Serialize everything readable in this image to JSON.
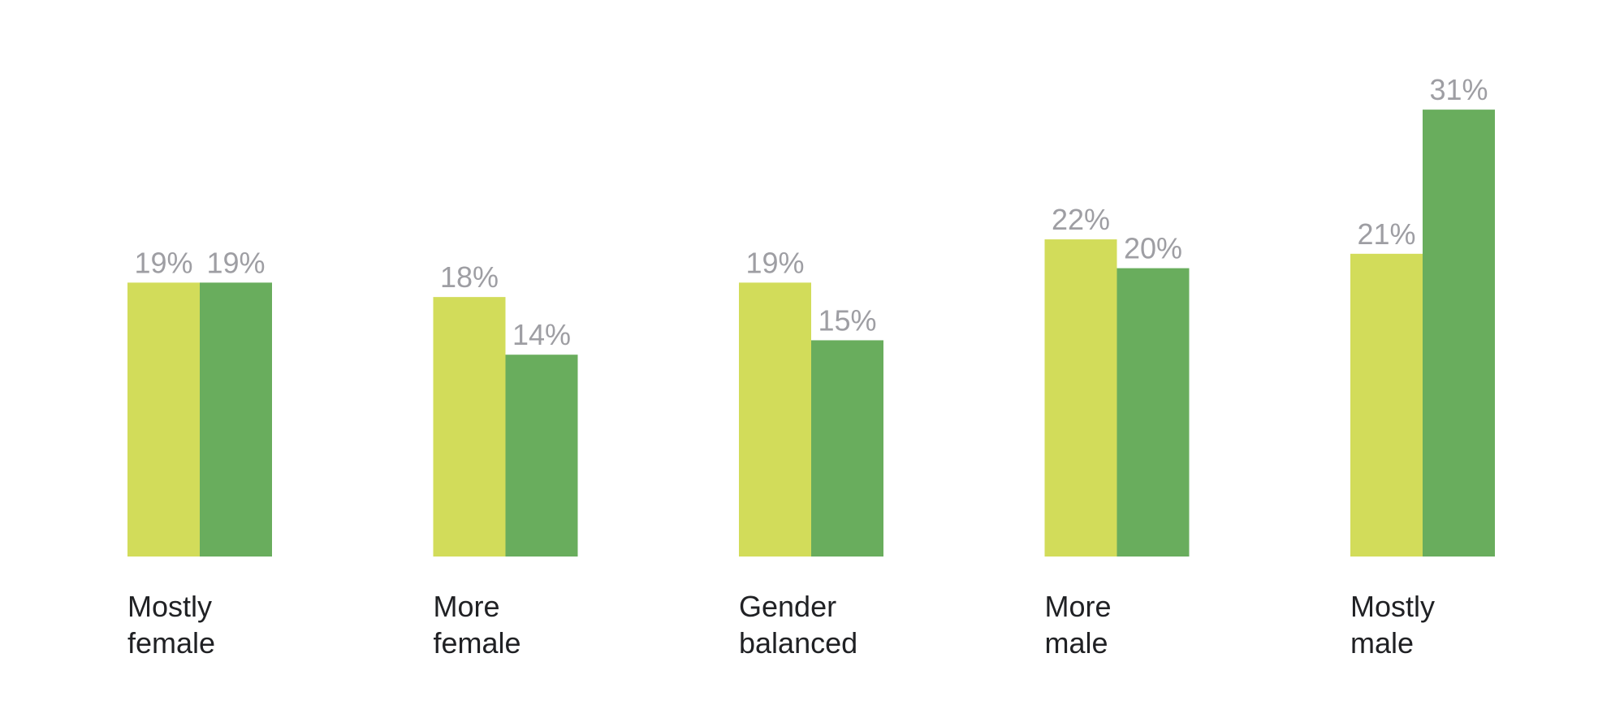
{
  "chart_data": {
    "type": "bar",
    "title": "",
    "xlabel": "",
    "ylabel": "",
    "ylim": [
      0,
      35
    ],
    "grid": false,
    "legend": "none",
    "categories": [
      [
        "Mostly",
        "female"
      ],
      [
        "More",
        "female"
      ],
      [
        "Gender",
        "balanced"
      ],
      [
        "More",
        "male"
      ],
      [
        "Mostly",
        "male"
      ]
    ],
    "series": [
      {
        "color": "#d2dc5a",
        "values": [
          19,
          18,
          19,
          22,
          21
        ],
        "labels": [
          "19%",
          "18%",
          "19%",
          "22%",
          "21%"
        ]
      },
      {
        "color": "#69ad5d",
        "values": [
          19,
          14,
          15,
          20,
          31
        ],
        "labels": [
          "19%",
          "14%",
          "15%",
          "20%",
          "31%"
        ]
      }
    ]
  }
}
